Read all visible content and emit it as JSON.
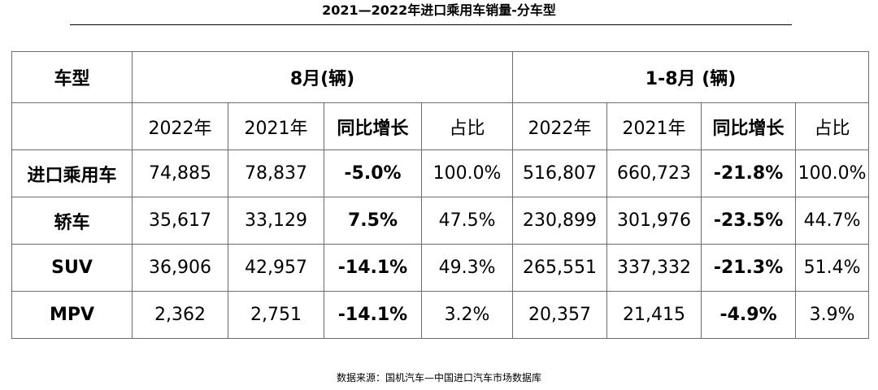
{
  "title": "2021—2022年进口乘用车销量-分车型",
  "chart_data": {
    "type": "table",
    "title": "2021—2022年进口乘用车销量-分车型",
    "header": {
      "row_label": "车型",
      "group_aug": "8月(辆)",
      "group_ytd": "1-8月 (辆)",
      "columns": [
        "2022年",
        "2021年",
        "同比增长",
        "占比",
        "2022年",
        "2021年",
        "同比增长",
        "占比"
      ]
    },
    "rows": [
      {
        "label": "进口乘用车",
        "cells": [
          "74,885",
          "78,837",
          "-5.0%",
          "100.0%",
          "516,807",
          "660,723",
          "-21.8%",
          "100.0%"
        ]
      },
      {
        "label": "轿车",
        "cells": [
          "35,617",
          "33,129",
          "7.5%",
          "47.5%",
          "230,899",
          "301,976",
          "-23.5%",
          "44.7%"
        ]
      },
      {
        "label": "SUV",
        "cells": [
          "36,906",
          "42,957",
          "-14.1%",
          "49.3%",
          "265,551",
          "337,332",
          "-21.3%",
          "51.4%"
        ]
      },
      {
        "label": "MPV",
        "cells": [
          "2,362",
          "2,751",
          "-14.1%",
          "3.2%",
          "20,357",
          "21,415",
          "-4.9%",
          "3.9%"
        ]
      }
    ]
  },
  "source": "数据来源：国机汽车—中国进口汽车市场数据库"
}
